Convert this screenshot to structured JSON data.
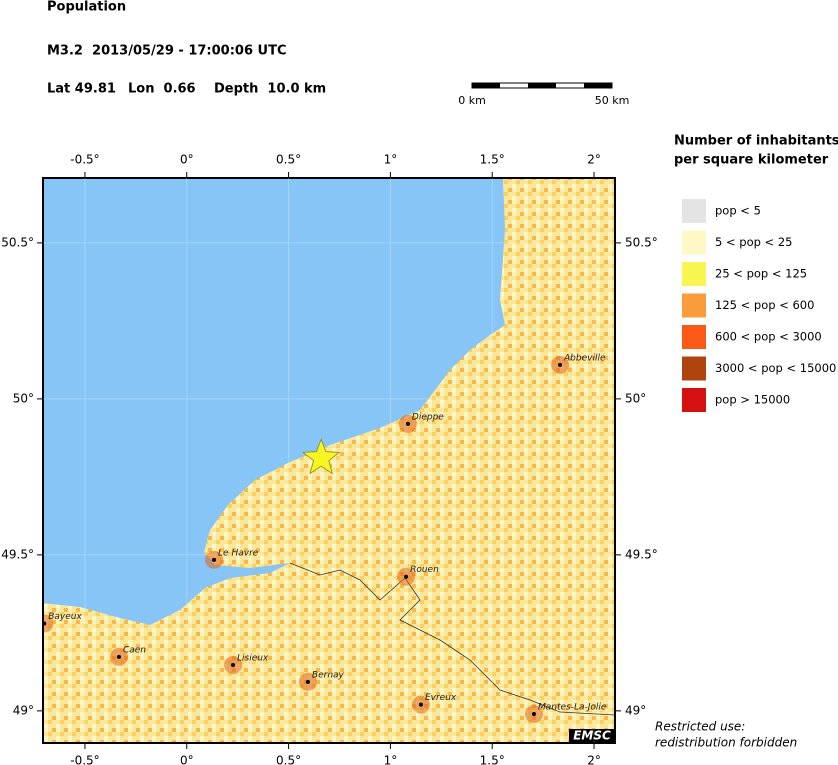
{
  "header": {
    "title": "Population",
    "event": "M3.2  2013/05/29 - 17:00:06 UTC",
    "lat": "Lat 49.81",
    "lon": "Lon  0.66",
    "depth": "Depth  10.0 km"
  },
  "scale_bar": {
    "start": "0 km",
    "end": "50 km"
  },
  "legend": {
    "title_lines": [
      "Number of inhabitants",
      "per square kilometer"
    ],
    "items": [
      {
        "label": "pop < 5",
        "color": "#e4e4e4"
      },
      {
        "label": "5 < pop < 25",
        "color": "#fdf8c6"
      },
      {
        "label": "25 < pop < 125",
        "color": "#f8f552"
      },
      {
        "label": "125 < pop < 600",
        "color": "#f99c3c"
      },
      {
        "label": "600 < pop < 3000",
        "color": "#fa5a16"
      },
      {
        "label": "3000 < pop < 15000",
        "color": "#b0440e"
      },
      {
        "label": "pop > 15000",
        "color": "#d41010"
      }
    ]
  },
  "map": {
    "lonlim": [
      -0.706,
      2.103
    ],
    "latlim": [
      48.897,
      50.708
    ],
    "lonticks": [
      {
        "value": -0.5,
        "label": "-0.5°"
      },
      {
        "value": 0,
        "label": "0°"
      },
      {
        "value": 0.5,
        "label": "0.5°"
      },
      {
        "value": 1,
        "label": "1°"
      },
      {
        "value": 1.5,
        "label": "1.5°"
      },
      {
        "value": 2,
        "label": "2°"
      }
    ],
    "latticks": [
      {
        "value": 50.5,
        "label": "50.5°"
      },
      {
        "value": 50,
        "label": "50°"
      },
      {
        "value": 49.5,
        "label": "49.5°"
      },
      {
        "value": 49,
        "label": "49°"
      }
    ],
    "epicenter": {
      "lat": 49.81,
      "lon": 0.66
    },
    "cities": [
      {
        "name": "Abbeville",
        "lon": 1.833,
        "lat": 50.109
      },
      {
        "name": "Dieppe",
        "lon": 1.086,
        "lat": 49.92
      },
      {
        "name": "Le Havre",
        "lon": 0.134,
        "lat": 49.484
      },
      {
        "name": "Rouen",
        "lon": 1.077,
        "lat": 49.43
      },
      {
        "name": "Bayeux",
        "lon": -0.7,
        "lat": 49.28
      },
      {
        "name": "Caen",
        "lon": -0.333,
        "lat": 49.173
      },
      {
        "name": "Lisieux",
        "lon": 0.227,
        "lat": 49.147
      },
      {
        "name": "Bernay",
        "lon": 0.595,
        "lat": 49.093
      },
      {
        "name": "Evreux",
        "lon": 1.15,
        "lat": 49.02
      },
      {
        "name": "Mantes-La-Jolie",
        "lon": 1.705,
        "lat": 48.99
      }
    ]
  },
  "footer": {
    "badge": "EMSC",
    "notice_lines": [
      "Restricted use:",
      "redistribution forbidden"
    ]
  }
}
